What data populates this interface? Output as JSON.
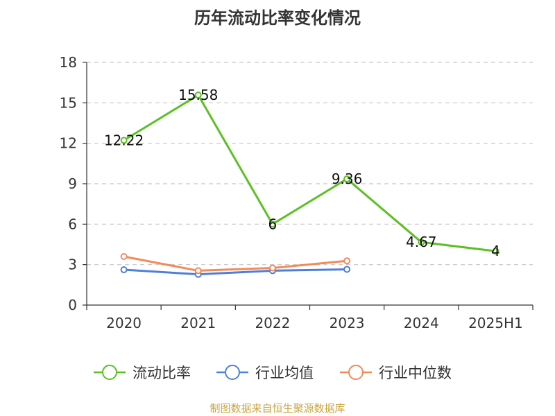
{
  "title": "历年流动比率变化情况",
  "source": "制图数据来自恒生聚源数据库",
  "colors": {
    "current_ratio": "#5bc023",
    "industry_mean": "#4d7fdb",
    "industry_median": "#f28a5a"
  },
  "chart_data": {
    "type": "line",
    "title": "历年流动比率变化情况",
    "categories": [
      "2020",
      "2021",
      "2022",
      "2023",
      "2024",
      "2025H1"
    ],
    "ylim": [
      0,
      18
    ],
    "yticks": [
      0,
      3,
      6,
      9,
      12,
      15,
      18
    ],
    "grid": true,
    "legend_position": "bottom",
    "series": [
      {
        "name": "流动比率",
        "values": [
          12.22,
          15.58,
          6,
          9.36,
          4.67,
          4
        ],
        "labels": [
          "12.22",
          "15.58",
          "6",
          "9.36",
          "4.67",
          "4"
        ]
      },
      {
        "name": "行业均值",
        "values": [
          2.62,
          2.28,
          2.55,
          2.65,
          null,
          null
        ]
      },
      {
        "name": "行业中位数",
        "values": [
          3.6,
          2.55,
          2.75,
          3.28,
          null,
          null
        ]
      }
    ]
  }
}
